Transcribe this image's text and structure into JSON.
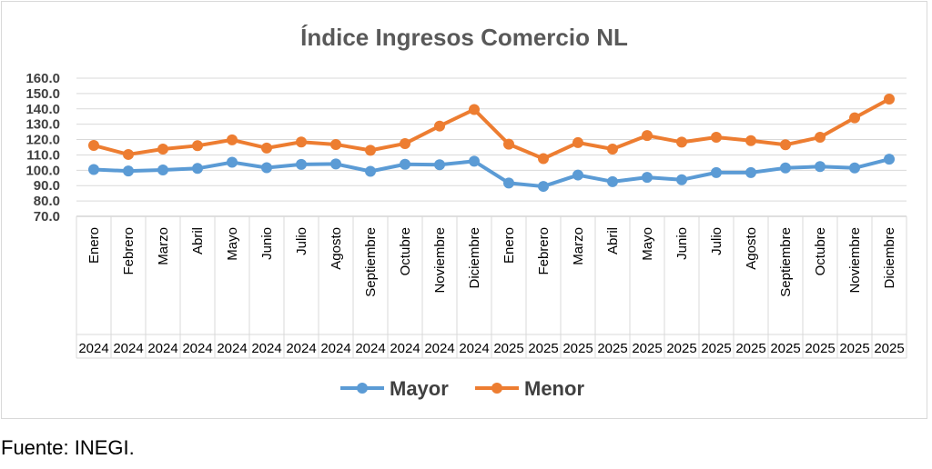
{
  "source": "Fuente: INEGI.",
  "chart_data": {
    "type": "line",
    "title": "Índice Ingresos Comercio NL",
    "xlabel": "",
    "ylabel": "",
    "ylim": [
      70,
      160
    ],
    "yticks": [
      "70.0",
      "80.0",
      "90.0",
      "100.0",
      "110.0",
      "120.0",
      "130.0",
      "140.0",
      "150.0",
      "160.0"
    ],
    "grid": true,
    "legend_position": "bottom",
    "categories": [
      "Enero",
      "Febrero",
      "Marzo",
      "Abril",
      "Mayo",
      "Junio",
      "Julio",
      "Agosto",
      "Septiembre",
      "Octubre",
      "Noviembre",
      "Diciembre",
      "Enero",
      "Febrero",
      "Marzo",
      "Abril",
      "Mayo",
      "Junio",
      "Julio",
      "Agosto",
      "Septiembre",
      "Octubre",
      "Noviembre",
      "Diciembre"
    ],
    "years": [
      "2024",
      "2024",
      "2024",
      "2024",
      "2024",
      "2024",
      "2024",
      "2024",
      "2024",
      "2024",
      "2024",
      "2024",
      "2025",
      "2025",
      "2025",
      "2025",
      "2025",
      "2025",
      "2025",
      "2025",
      "2025",
      "2025",
      "2025",
      "2025"
    ],
    "series": [
      {
        "name": "Mayor",
        "color": "#5b9bd5",
        "values": [
          100.5,
          99.5,
          100.2,
          101.2,
          105.2,
          101.7,
          103.8,
          104.1,
          99.3,
          103.9,
          103.6,
          105.9,
          91.7,
          89.5,
          96.9,
          92.6,
          95.4,
          93.8,
          98.5,
          98.5,
          101.5,
          102.4,
          101.5,
          107.2
        ]
      },
      {
        "name": "Menor",
        "color": "#ed7d31",
        "values": [
          116.2,
          110.3,
          113.8,
          116.0,
          119.8,
          114.5,
          118.4,
          116.8,
          113.0,
          117.4,
          128.8,
          139.6,
          117.0,
          107.6,
          118.0,
          113.8,
          122.6,
          118.3,
          121.5,
          119.3,
          116.6,
          121.5,
          134.2,
          146.4
        ]
      }
    ]
  }
}
